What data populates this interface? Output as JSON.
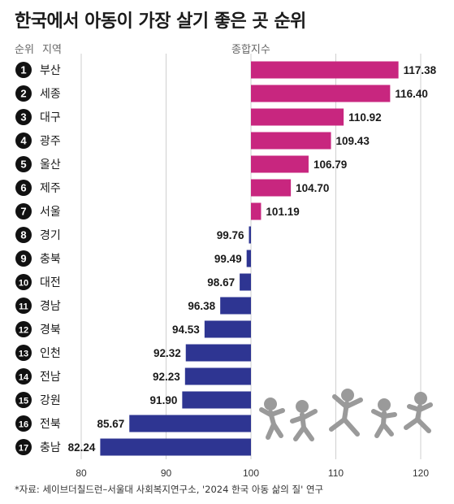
{
  "title": "한국에서 아동이 가장 살기 좋은 곳 순위",
  "header": {
    "rank_label": "순위",
    "region_label": "지역",
    "index_label": "종합지수"
  },
  "source": "*자료: 세이브더칠드런–서울대 사회복지연구소, '2024 한국 아동 삶의 질' 연구",
  "colors": {
    "above": "#c8267f",
    "below": "#2e3592",
    "badge": "#111111",
    "grid": "#cfcfcf"
  },
  "chart_data": {
    "type": "bar",
    "orientation": "horizontal",
    "baseline": 100,
    "xlim": [
      80,
      120
    ],
    "xticks": [
      "80",
      "90",
      "100",
      "110",
      "120"
    ],
    "grid": true,
    "ranks": [
      "1",
      "2",
      "3",
      "4",
      "5",
      "6",
      "7",
      "8",
      "9",
      "10",
      "11",
      "12",
      "13",
      "14",
      "15",
      "16",
      "17"
    ],
    "categories": [
      "부산",
      "세종",
      "대구",
      "광주",
      "울산",
      "제주",
      "서울",
      "경기",
      "충북",
      "대전",
      "경남",
      "경북",
      "인천",
      "전남",
      "강원",
      "전북",
      "충남"
    ],
    "values": [
      117.38,
      116.4,
      110.92,
      109.43,
      106.79,
      104.7,
      101.19,
      99.76,
      99.49,
      98.67,
      96.38,
      94.53,
      92.32,
      92.23,
      91.9,
      85.67,
      82.24
    ],
    "labels": [
      "117.38",
      "116.40",
      "110.92",
      "109.43",
      "106.79",
      "104.70",
      "101.19",
      "99.76",
      "99.49",
      "98.67",
      "96.38",
      "94.53",
      "92.32",
      "92.23",
      "91.90",
      "85.67",
      "82.24"
    ]
  }
}
